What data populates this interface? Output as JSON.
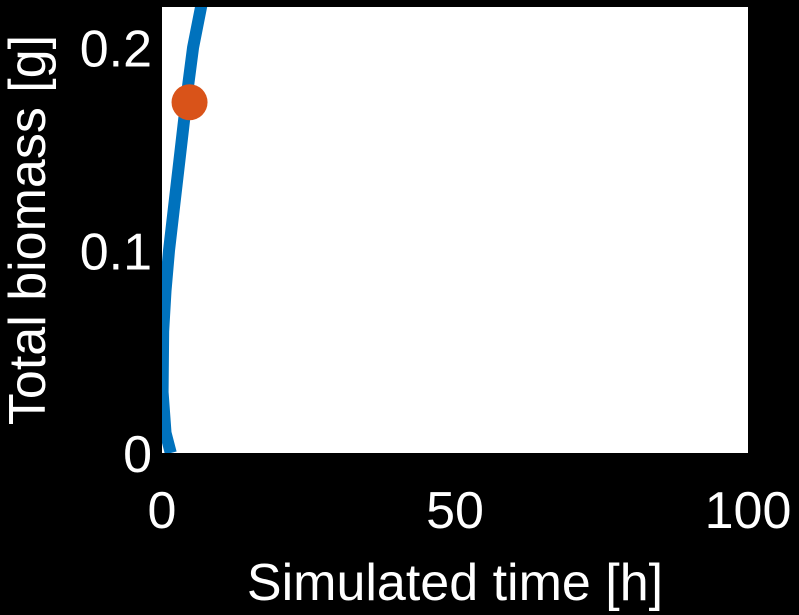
{
  "chart_data": {
    "type": "line",
    "xlabel": "Simulated time [h]",
    "ylabel": "Total biomass [g]",
    "xlim": [
      0,
      100
    ],
    "ylim": [
      0,
      0.22
    ],
    "xticks": [
      0,
      50,
      100
    ],
    "xtick_labels": [
      "0",
      "50",
      "100"
    ],
    "yticks": [
      0,
      0.1,
      0.2
    ],
    "ytick_labels": [
      "0",
      "0.1",
      "0.2"
    ],
    "grid": false,
    "series": [
      {
        "x": [
          1.5,
          0.6,
          0.1,
          0.2,
          0.6,
          1.2,
          2.0,
          2.8,
          3.6,
          4.4,
          5.3,
          6.8
        ],
        "y": [
          0.0,
          0.01,
          0.03,
          0.06,
          0.08,
          0.1,
          0.12,
          0.14,
          0.16,
          0.18,
          0.2,
          0.222
        ]
      }
    ],
    "marker": {
      "x": 4.7,
      "y": 0.173
    },
    "colors": {
      "background": "#000000",
      "plot_area": "#ffffff",
      "line": "#0072bd",
      "marker": "#d95319",
      "text": "#ffffff"
    }
  }
}
